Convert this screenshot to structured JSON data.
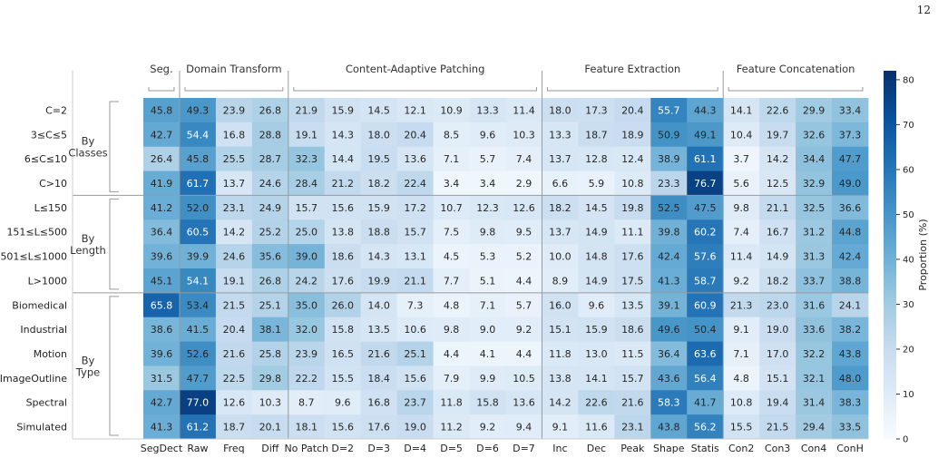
{
  "page_number": "12",
  "chart_data": {
    "type": "heatmap",
    "section_groups": [
      {
        "label": "Seg.",
        "start": 0,
        "end": 0
      },
      {
        "label": "Domain Transform",
        "start": 1,
        "end": 3
      },
      {
        "label": "Content-Adaptive Patching",
        "start": 4,
        "end": 10
      },
      {
        "label": "Feature Extraction",
        "start": 11,
        "end": 15
      },
      {
        "label": "Feature Concatenation",
        "start": 16,
        "end": 19
      }
    ],
    "columns": [
      "SegDect",
      "Raw",
      "Freq",
      "Diff",
      "No Patch",
      "D=2",
      "D=3",
      "D=4",
      "D=5",
      "D=6",
      "D=7",
      "Inc",
      "Dec",
      "Peak",
      "Shape",
      "Statis",
      "Con2",
      "Con3",
      "Con4",
      "ConH"
    ],
    "row_groups": [
      {
        "label_lines": [
          "By",
          "Classes"
        ],
        "start": 0,
        "end": 3
      },
      {
        "label_lines": [
          "By",
          "Length"
        ],
        "start": 4,
        "end": 7
      },
      {
        "label_lines": [
          "By",
          "Type"
        ],
        "start": 8,
        "end": 13
      }
    ],
    "rows": [
      "C=2",
      "3≤C≤5",
      "6≤C≤10",
      "C>10",
      "L≤150",
      "151≤L≤500",
      "501≤L≤1000",
      "L>1000",
      "Biomedical",
      "Industrial",
      "Motion",
      "ImageOutline",
      "Spectral",
      "Simulated"
    ],
    "values": [
      [
        45.8,
        49.3,
        23.9,
        26.8,
        21.9,
        15.9,
        14.5,
        12.1,
        10.9,
        13.3,
        11.4,
        18.0,
        17.3,
        20.4,
        55.7,
        44.3,
        14.1,
        22.6,
        29.9,
        33.4
      ],
      [
        42.7,
        54.4,
        16.8,
        28.8,
        19.1,
        14.3,
        18.0,
        20.4,
        8.5,
        9.6,
        10.3,
        13.3,
        18.7,
        18.9,
        50.9,
        49.1,
        10.4,
        19.7,
        32.6,
        37.3
      ],
      [
        26.4,
        45.8,
        25.5,
        28.7,
        32.3,
        14.4,
        19.5,
        13.6,
        7.1,
        5.7,
        7.4,
        13.7,
        12.8,
        12.4,
        38.9,
        61.1,
        3.7,
        14.2,
        34.4,
        47.7
      ],
      [
        41.9,
        61.7,
        13.7,
        24.6,
        28.4,
        21.2,
        18.2,
        22.4,
        3.4,
        3.4,
        2.9,
        6.6,
        5.9,
        10.8,
        23.3,
        76.7,
        5.6,
        12.5,
        32.9,
        49.0
      ],
      [
        41.2,
        52.0,
        23.1,
        24.9,
        15.7,
        15.6,
        15.9,
        17.2,
        10.7,
        12.3,
        12.6,
        18.2,
        14.5,
        19.8,
        52.5,
        47.5,
        9.8,
        21.1,
        32.5,
        36.6
      ],
      [
        36.4,
        60.5,
        14.2,
        25.2,
        25.0,
        13.8,
        18.8,
        15.7,
        7.5,
        9.8,
        9.5,
        13.7,
        14.9,
        11.1,
        39.8,
        60.2,
        7.4,
        16.7,
        31.2,
        44.8
      ],
      [
        39.6,
        39.9,
        24.6,
        35.6,
        39.0,
        18.6,
        14.3,
        13.1,
        4.5,
        5.3,
        5.2,
        10.0,
        14.8,
        17.6,
        42.4,
        57.6,
        11.4,
        14.9,
        31.3,
        42.4
      ],
      [
        45.1,
        54.1,
        19.1,
        26.8,
        24.2,
        17.6,
        19.9,
        21.1,
        7.7,
        5.1,
        4.4,
        8.9,
        14.9,
        17.5,
        41.3,
        58.7,
        9.2,
        18.2,
        33.7,
        38.8
      ],
      [
        65.8,
        53.4,
        21.5,
        25.1,
        35.0,
        26.0,
        14.0,
        7.3,
        4.8,
        7.1,
        5.7,
        16.0,
        9.6,
        13.5,
        39.1,
        60.9,
        21.3,
        23.0,
        31.6,
        24.1
      ],
      [
        38.6,
        41.5,
        20.4,
        38.1,
        32.0,
        15.8,
        13.5,
        10.6,
        9.8,
        9.0,
        9.2,
        15.1,
        15.9,
        18.6,
        49.6,
        50.4,
        9.1,
        19.0,
        33.6,
        38.2
      ],
      [
        39.6,
        52.6,
        21.6,
        25.8,
        23.9,
        16.5,
        21.6,
        25.1,
        4.4,
        4.1,
        4.4,
        11.8,
        13.0,
        11.5,
        36.4,
        63.6,
        7.1,
        17.0,
        32.2,
        43.8
      ],
      [
        31.5,
        47.7,
        22.5,
        29.8,
        22.2,
        15.5,
        18.4,
        15.6,
        7.9,
        9.9,
        10.5,
        13.8,
        14.1,
        15.7,
        43.6,
        56.4,
        4.8,
        15.1,
        32.1,
        48.0
      ],
      [
        42.7,
        77.0,
        12.6,
        10.3,
        8.7,
        9.6,
        16.8,
        23.7,
        11.8,
        15.8,
        13.6,
        14.2,
        22.6,
        21.6,
        58.3,
        41.7,
        10.8,
        19.4,
        31.4,
        38.3
      ],
      [
        41.3,
        61.2,
        18.7,
        20.1,
        18.1,
        15.6,
        17.6,
        19.0,
        11.2,
        9.2,
        9.4,
        9.1,
        11.6,
        23.1,
        43.8,
        56.2,
        15.5,
        21.5,
        29.4,
        33.5
      ]
    ],
    "colorbar": {
      "label": "Proportion (%)",
      "min": 0,
      "max": 82,
      "ticks": [
        0,
        10,
        20,
        30,
        40,
        50,
        60,
        70,
        80
      ],
      "colormap": "Blues"
    }
  }
}
